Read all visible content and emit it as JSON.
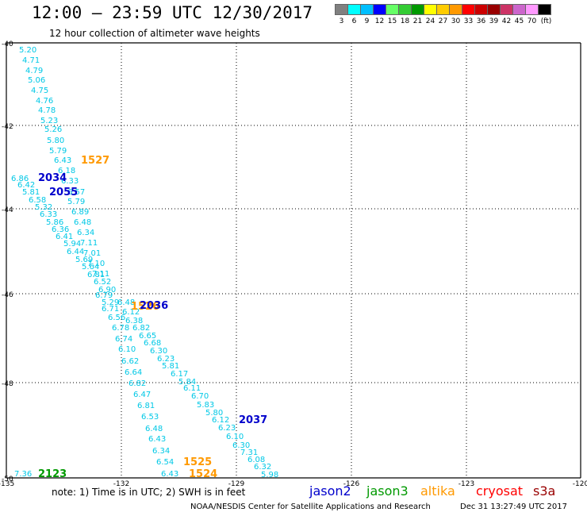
{
  "header": {
    "title": "12:00 — 23:59 UTC 12/30/2017",
    "subtitle": "12 hour collection of altimeter wave heights"
  },
  "scale": {
    "colors": [
      "#808080",
      "#00ffff",
      "#00bfff",
      "#0000ff",
      "#66ff66",
      "#33cc33",
      "#009900",
      "#ffff00",
      "#ffcc00",
      "#ff9900",
      "#ff0000",
      "#cc0000",
      "#990000",
      "#cc3366",
      "#cc66cc",
      "#ff99ff",
      "#000000"
    ],
    "labels": [
      "3",
      "6",
      "9",
      "12",
      "15",
      "18",
      "21",
      "24",
      "27",
      "30",
      "33",
      "36",
      "39",
      "42",
      "45",
      "70",
      "(ft)"
    ]
  },
  "axes": {
    "x_ticks": [
      "-135",
      "-132",
      "-129",
      "-126",
      "-123",
      "-120"
    ],
    "y_ticks": [
      "-40",
      "-42",
      "-44",
      "-46",
      "-48",
      "-50"
    ]
  },
  "wave_labels_cyan": [
    "5.20",
    "4.71",
    "4.79",
    "5.06",
    "4.75",
    "4.76",
    "4.78",
    "5.23",
    "5.26",
    "5.80",
    "5.79",
    "6.43",
    "6.18",
    "6.33",
    "6.86",
    "6.42",
    "5.81",
    "6.57",
    "6.58",
    "5.79",
    "5.32",
    "6.89",
    "6.33",
    "6.48",
    "5.86",
    "6.34",
    "6.36",
    "6.41",
    "5.94",
    "7.11",
    "6.44",
    "7.01",
    "5.69",
    "7.10",
    "5.64",
    "7.11",
    "6.81",
    "6.52",
    "6.90",
    "6.79",
    "5.29",
    "6.48",
    "6.71",
    "6.12",
    "6.56",
    "6.38",
    "6.78",
    "6.82",
    "6.74",
    "6.65",
    "6.10",
    "6.68",
    "6.30",
    "6.62",
    "6.23",
    "6.64",
    "5.81",
    "6.17",
    "6.82",
    "5.84",
    "6.47",
    "6.11",
    "6.81",
    "6.70",
    "6.53",
    "5.83",
    "6.48",
    "5.80",
    "6.43",
    "6.12",
    "6.34",
    "6.23",
    "6.54",
    "6.10",
    "6.43",
    "6.30",
    "7.31",
    "6.08",
    "6.32",
    "5.98",
    "7.36"
  ],
  "pass_labels": [
    {
      "text": "1527",
      "color": "#ff9900"
    },
    {
      "text": "2034",
      "color": "#0000cc"
    },
    {
      "text": "2055",
      "color": "#0000cc"
    },
    {
      "text": "1526",
      "color": "#ff9900"
    },
    {
      "text": "2036",
      "color": "#0000cc"
    },
    {
      "text": "2037",
      "color": "#0000cc"
    },
    {
      "text": "1525",
      "color": "#ff9900"
    },
    {
      "text": "1524",
      "color": "#ff9900"
    },
    {
      "text": "2123",
      "color": "#009900"
    }
  ],
  "footer": {
    "note": "note:  1) Time is in UTC;  2) SWH is in feet",
    "satellites": [
      {
        "name": "jason2",
        "color": "#0000cc"
      },
      {
        "name": "jason3",
        "color": "#009900"
      },
      {
        "name": "altika",
        "color": "#ff9900"
      },
      {
        "name": "cryosat",
        "color": "#ff0000"
      },
      {
        "name": "s3a",
        "color": "#990000"
      }
    ],
    "credit": "NOAA/NESDIS Center for Satellite Applications and Research",
    "stamp": "Dec 31 13:27:49 UTC 2017"
  }
}
